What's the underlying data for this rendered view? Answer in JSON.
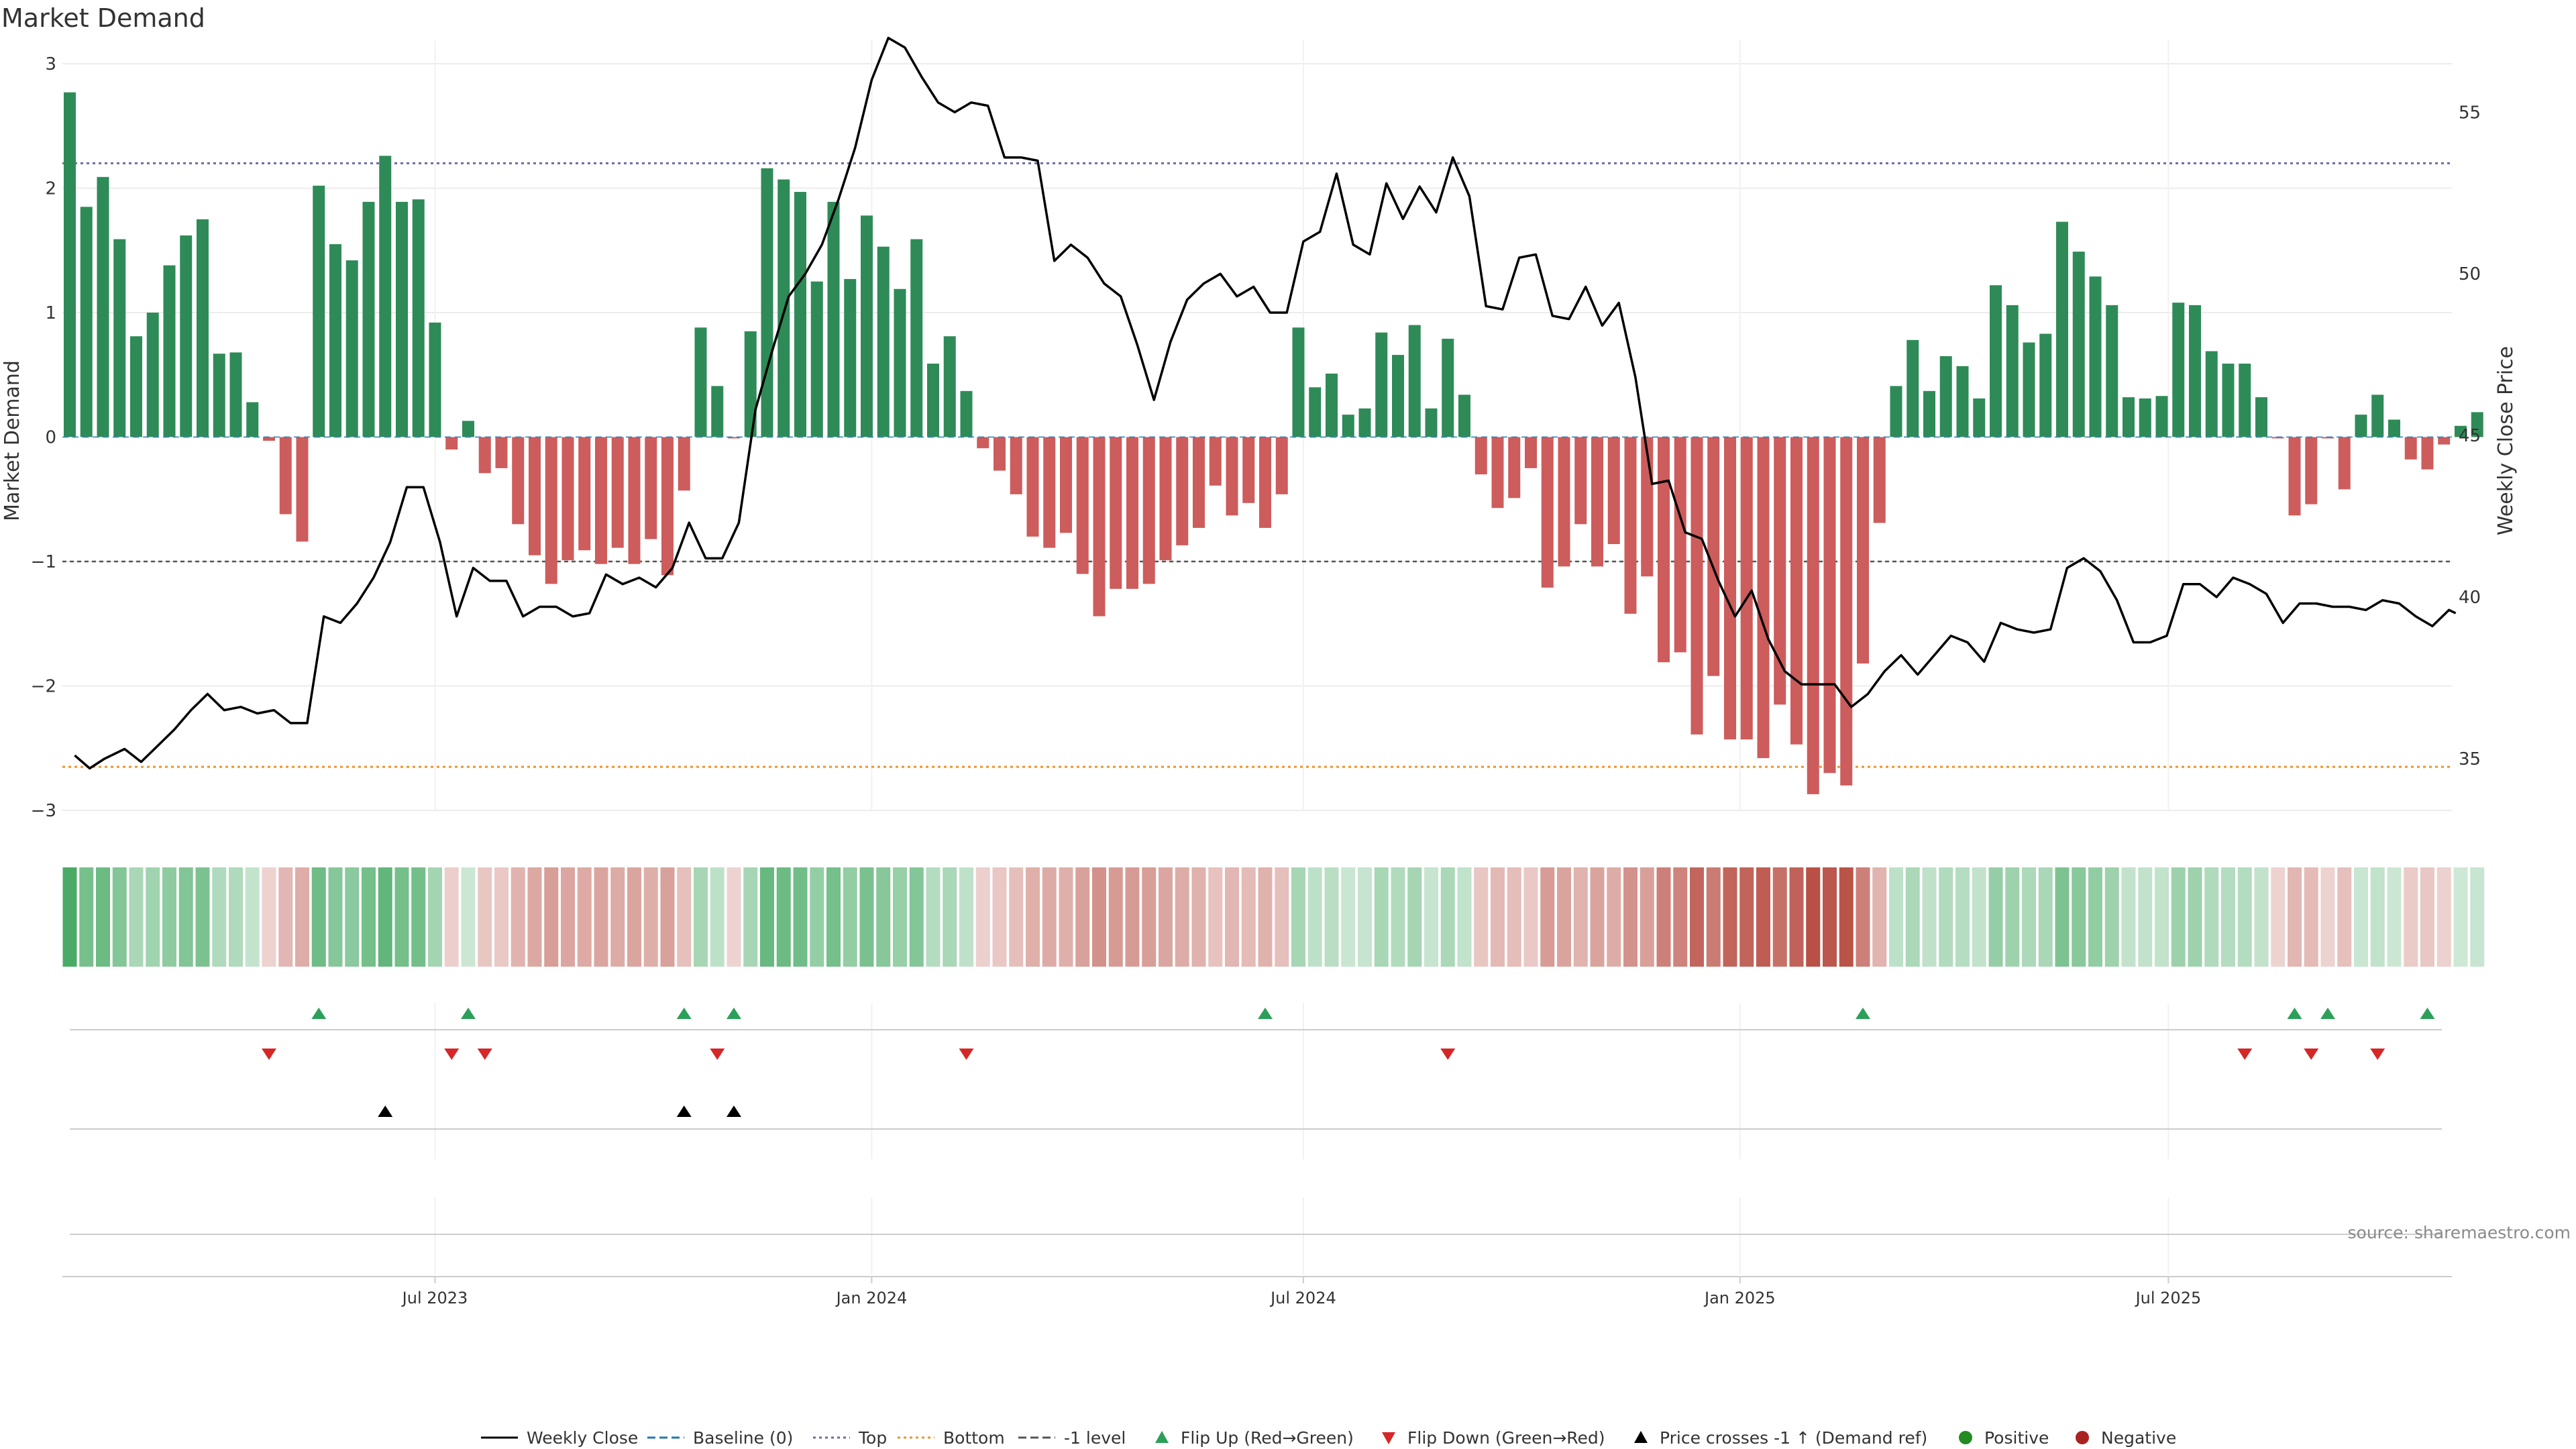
{
  "chart_data": {
    "type": "bar+line",
    "title": "Market Demand",
    "ylabel_left": "Market Demand",
    "ylabel_right": "Weekly Close Price",
    "ylim_left": [
      -3,
      3
    ],
    "ylim_right": [
      33.4,
      56.5
    ],
    "left_ticks": [
      3,
      2,
      1,
      0,
      -1,
      -2,
      -3
    ],
    "left_tick_labels": [
      "3",
      "2",
      "1",
      "0",
      "−1",
      "−2",
      "−3"
    ],
    "right_ticks": [
      55,
      50,
      45,
      40,
      35
    ],
    "right_tick_labels": [
      "55",
      "50",
      "45",
      "40",
      "35"
    ],
    "reference_lines": {
      "top": 2.2,
      "bottom": -2.65,
      "minus_one": -1.0,
      "baseline": 0
    },
    "x_range_weeks": [
      0,
      143.7
    ],
    "x_ticks": [
      {
        "label": "Jul 2023",
        "week": 22
      },
      {
        "label": "Jan 2024",
        "week": 48.3
      },
      {
        "label": "Jul 2024",
        "week": 74.3
      },
      {
        "label": "Jan 2025",
        "week": 100.6
      },
      {
        "label": "Jul 2025",
        "week": 126.4
      }
    ],
    "demand": [
      2.77,
      1.85,
      2.09,
      1.59,
      0.81,
      1.0,
      1.38,
      1.62,
      1.75,
      0.67,
      0.68,
      0.28,
      -0.03,
      -0.62,
      -0.84,
      2.02,
      1.55,
      1.42,
      1.89,
      2.26,
      1.89,
      1.91,
      0.92,
      -0.1,
      0.13,
      -0.29,
      -0.25,
      -0.7,
      -0.95,
      -1.18,
      -0.99,
      -0.91,
      -1.02,
      -0.89,
      -1.02,
      -0.82,
      -1.11,
      -0.43,
      0.88,
      0.41,
      -0.01,
      0.85,
      2.16,
      2.07,
      1.97,
      1.25,
      1.89,
      1.27,
      1.78,
      1.53,
      1.19,
      1.59,
      0.59,
      0.81,
      0.37,
      -0.09,
      -0.27,
      -0.46,
      -0.8,
      -0.89,
      -0.77,
      -1.1,
      -1.44,
      -1.22,
      -1.22,
      -1.18,
      -0.99,
      -0.87,
      -0.73,
      -0.39,
      -0.63,
      -0.53,
      -0.73,
      -0.46,
      0.88,
      0.4,
      0.51,
      0.18,
      0.23,
      0.84,
      0.66,
      0.9,
      0.23,
      0.79,
      0.34,
      -0.3,
      -0.57,
      -0.49,
      -0.25,
      -1.21,
      -1.04,
      -0.7,
      -1.04,
      -0.86,
      -1.42,
      -1.12,
      -1.81,
      -1.73,
      -2.39,
      -1.92,
      -2.43,
      -2.43,
      -2.58,
      -2.15,
      -2.47,
      -2.87,
      -2.7,
      -2.8,
      -1.82,
      -0.69,
      0.41,
      0.78,
      0.37,
      0.65,
      0.57,
      0.31,
      1.22,
      1.06,
      0.76,
      0.83,
      1.73,
      1.49,
      1.29,
      1.06,
      0.32,
      0.31,
      0.33,
      1.08,
      1.06,
      0.69,
      0.59,
      0.59,
      0.32,
      -0.01,
      -0.63,
      -0.54,
      -0.01,
      -0.42,
      0.18,
      0.34,
      0.14,
      -0.18,
      -0.26,
      -0.06,
      0.09,
      0.2
    ],
    "weekly_close": [
      [
        0.3,
        35.1
      ],
      [
        1.2,
        34.7
      ],
      [
        2.1,
        35.0
      ],
      [
        3.3,
        35.3
      ],
      [
        4.3,
        34.9
      ],
      [
        5.3,
        35.4
      ],
      [
        6.3,
        35.9
      ],
      [
        7.3,
        36.5
      ],
      [
        8.3,
        37.0
      ],
      [
        9.3,
        36.5
      ],
      [
        10.3,
        36.6
      ],
      [
        11.3,
        36.4
      ],
      [
        12.3,
        36.5
      ],
      [
        13.3,
        36.1
      ],
      [
        14.3,
        36.1
      ],
      [
        15.3,
        39.4
      ],
      [
        16.3,
        39.2
      ],
      [
        17.3,
        39.8
      ],
      [
        18.3,
        40.6
      ],
      [
        19.3,
        41.7
      ],
      [
        20.3,
        43.4
      ],
      [
        21.3,
        43.4
      ],
      [
        22.3,
        41.7
      ],
      [
        23.3,
        39.4
      ],
      [
        24.3,
        40.9
      ],
      [
        25.3,
        40.5
      ],
      [
        26.3,
        40.5
      ],
      [
        27.3,
        39.4
      ],
      [
        28.3,
        39.7
      ],
      [
        29.3,
        39.7
      ],
      [
        30.3,
        39.4
      ],
      [
        31.3,
        39.5
      ],
      [
        32.3,
        40.7
      ],
      [
        33.3,
        40.4
      ],
      [
        34.3,
        40.6
      ],
      [
        35.3,
        40.3
      ],
      [
        36.3,
        40.9
      ],
      [
        37.3,
        42.3
      ],
      [
        38.3,
        41.2
      ],
      [
        39.3,
        41.2
      ],
      [
        40.3,
        42.3
      ],
      [
        41.3,
        45.8
      ],
      [
        42.3,
        47.6
      ],
      [
        43.3,
        49.3
      ],
      [
        44.3,
        50.0
      ],
      [
        45.3,
        50.9
      ],
      [
        46.3,
        52.3
      ],
      [
        47.3,
        53.9
      ],
      [
        48.3,
        56.0
      ],
      [
        49.3,
        57.3
      ],
      [
        50.3,
        57.0
      ],
      [
        51.3,
        56.1
      ],
      [
        52.3,
        55.3
      ],
      [
        53.3,
        55.0
      ],
      [
        54.3,
        55.3
      ],
      [
        55.3,
        55.2
      ],
      [
        56.3,
        53.6
      ],
      [
        57.3,
        53.6
      ],
      [
        58.3,
        53.5
      ],
      [
        59.3,
        50.4
      ],
      [
        60.3,
        50.9
      ],
      [
        61.3,
        50.5
      ],
      [
        62.3,
        49.7
      ],
      [
        63.3,
        49.3
      ],
      [
        64.3,
        47.8
      ],
      [
        65.3,
        46.1
      ],
      [
        66.3,
        47.9
      ],
      [
        67.3,
        49.2
      ],
      [
        68.3,
        49.7
      ],
      [
        69.3,
        50.0
      ],
      [
        70.3,
        49.3
      ],
      [
        71.3,
        49.6
      ],
      [
        72.3,
        48.8
      ],
      [
        73.3,
        48.8
      ],
      [
        74.3,
        51.0
      ],
      [
        75.3,
        51.3
      ],
      [
        76.3,
        53.1
      ],
      [
        77.3,
        50.9
      ],
      [
        78.3,
        50.6
      ],
      [
        79.3,
        52.8
      ],
      [
        80.3,
        51.7
      ],
      [
        81.3,
        52.7
      ],
      [
        82.3,
        51.9
      ],
      [
        83.3,
        53.6
      ],
      [
        84.3,
        52.4
      ],
      [
        85.3,
        49.0
      ],
      [
        86.3,
        48.9
      ],
      [
        87.3,
        50.5
      ],
      [
        88.3,
        50.6
      ],
      [
        89.3,
        48.7
      ],
      [
        90.3,
        48.6
      ],
      [
        91.3,
        49.6
      ],
      [
        92.3,
        48.4
      ],
      [
        93.3,
        49.1
      ],
      [
        94.3,
        46.8
      ],
      [
        95.3,
        43.5
      ],
      [
        96.3,
        43.6
      ],
      [
        97.3,
        42.0
      ],
      [
        98.3,
        41.8
      ],
      [
        99.3,
        40.5
      ],
      [
        100.3,
        39.4
      ],
      [
        101.3,
        40.2
      ],
      [
        102.3,
        38.7
      ],
      [
        103.3,
        37.7
      ],
      [
        104.3,
        37.3
      ],
      [
        105.3,
        37.3
      ],
      [
        106.3,
        37.3
      ],
      [
        107.3,
        36.6
      ],
      [
        108.3,
        37.0
      ],
      [
        109.3,
        37.7
      ],
      [
        110.3,
        38.2
      ],
      [
        111.3,
        37.6
      ],
      [
        112.3,
        38.2
      ],
      [
        113.3,
        38.8
      ],
      [
        114.3,
        38.6
      ],
      [
        115.3,
        38.0
      ],
      [
        116.3,
        39.2
      ],
      [
        117.3,
        39.0
      ],
      [
        118.3,
        38.9
      ],
      [
        119.3,
        39.0
      ],
      [
        120.3,
        40.9
      ],
      [
        121.3,
        41.2
      ],
      [
        122.3,
        40.8
      ],
      [
        123.3,
        39.9
      ],
      [
        124.3,
        38.6
      ],
      [
        125.3,
        38.6
      ],
      [
        126.3,
        38.8
      ],
      [
        127.3,
        40.4
      ],
      [
        128.3,
        40.4
      ],
      [
        129.3,
        40.0
      ],
      [
        130.3,
        40.6
      ],
      [
        131.3,
        40.4
      ],
      [
        132.3,
        40.1
      ],
      [
        133.3,
        39.2
      ],
      [
        134.3,
        39.8
      ],
      [
        135.3,
        39.8
      ],
      [
        136.3,
        39.7
      ],
      [
        137.3,
        39.7
      ],
      [
        138.3,
        39.6
      ],
      [
        139.3,
        39.9
      ],
      [
        140.3,
        39.8
      ],
      [
        141.3,
        39.4
      ],
      [
        142.3,
        39.1
      ],
      [
        143.3,
        39.6
      ],
      [
        143.7,
        39.5
      ]
    ],
    "flip_up_weeks": [
      15,
      24,
      37,
      40,
      72,
      108,
      134,
      136,
      142
    ],
    "flip_down_weeks": [
      12,
      23,
      25,
      39,
      54,
      83,
      131,
      135,
      139
    ],
    "price_cross_weeks": [
      19,
      37,
      40
    ],
    "series": [
      {
        "name": "Weekly Close",
        "style": "line",
        "color": "#000000"
      },
      {
        "name": "Baseline (0)",
        "style": "dashed",
        "color": "#1f77b4"
      },
      {
        "name": "Top",
        "style": "dotted",
        "color": "#6a6aa8"
      },
      {
        "name": "Bottom",
        "style": "dotted",
        "color": "#e8952d"
      },
      {
        "name": "-1 level",
        "style": "dashed",
        "color": "#555555"
      },
      {
        "name": "Flip Up (Red→Green)",
        "style": "triangle-up",
        "color": "#2ca05a"
      },
      {
        "name": "Flip Down (Green→Red)",
        "style": "triangle-down",
        "color": "#d62728"
      },
      {
        "name": "Price crosses -1 ↑ (Demand ref)",
        "style": "triangle-up",
        "color": "#000000"
      },
      {
        "name": "Positive",
        "style": "circle",
        "color": "#228b22"
      },
      {
        "name": "Negative",
        "style": "circle",
        "color": "#aa2222"
      }
    ],
    "colors": {
      "positive_bar": "#2e8b57",
      "negative_bar": "#cd5c5c",
      "heat_positive": "#2e9e4f",
      "heat_negative": "#b03a2e"
    },
    "source_note": "source: sharemaestro.com"
  }
}
